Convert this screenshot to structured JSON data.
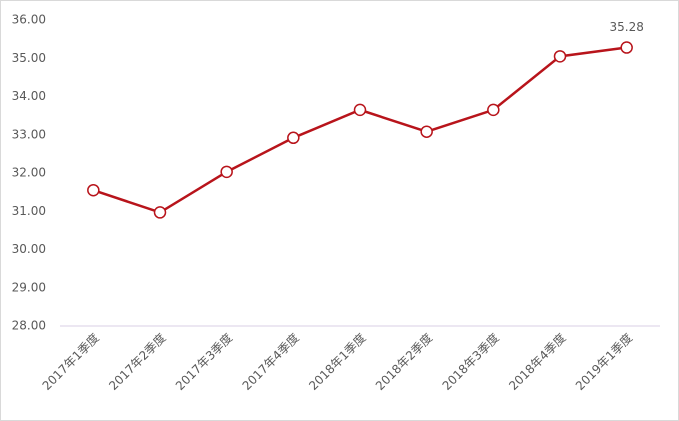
{
  "chart_data": {
    "type": "line",
    "categories": [
      "2017年1季度",
      "2017年2季度",
      "2017年3季度",
      "2017年4季度",
      "2018年1季度",
      "2018年2季度",
      "2018年3季度",
      "2018年4季度",
      "2019年1季度"
    ],
    "values": [
      31.55,
      30.97,
      32.03,
      32.92,
      33.65,
      33.08,
      33.65,
      35.05,
      35.28
    ],
    "value_labels": [
      null,
      null,
      null,
      null,
      null,
      null,
      null,
      null,
      "35.28"
    ],
    "color": "#b8141b",
    "ylim": [
      28,
      36
    ],
    "yticks": [
      {
        "value": 28,
        "label": "28.00"
      },
      {
        "value": 29,
        "label": "29.00"
      },
      {
        "value": 30,
        "label": "30.00"
      },
      {
        "value": 31,
        "label": "31.00"
      },
      {
        "value": 32,
        "label": "32.00"
      },
      {
        "value": 33,
        "label": "33.00"
      },
      {
        "value": 34,
        "label": "34.00"
      },
      {
        "value": 35,
        "label": "35.00"
      },
      {
        "value": 36,
        "label": "36.00"
      }
    ],
    "grid": false
  }
}
